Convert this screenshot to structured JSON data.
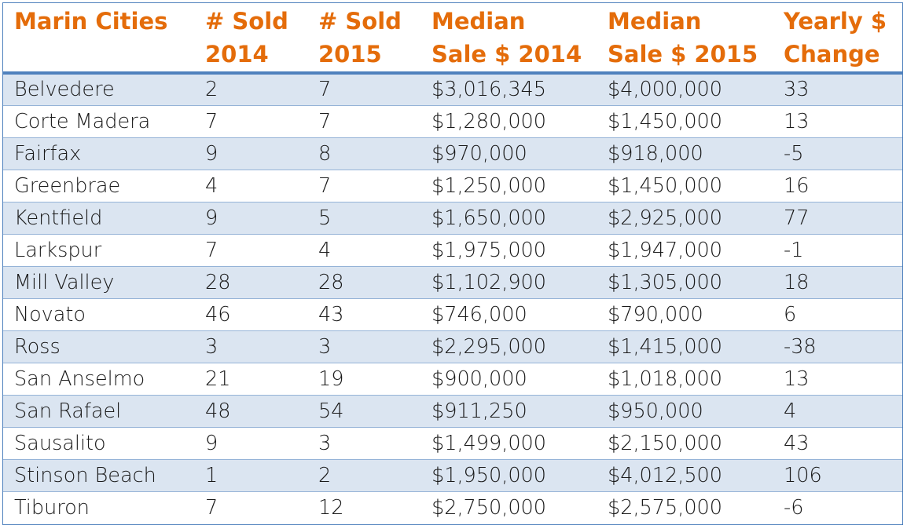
{
  "chart_data": {
    "type": "table",
    "columns": [
      "Marin Cities",
      "# Sold 2014",
      "# Sold 2015",
      "Median Sale $ 2014",
      "Median Sale $ 2015",
      "Yearly $ Change"
    ],
    "header_lines": [
      [
        "Marin Cities"
      ],
      [
        "# Sold",
        "2014"
      ],
      [
        "# Sold",
        "2015"
      ],
      [
        "Median",
        "Sale $ 2014"
      ],
      [
        "Median",
        "Sale $ 2015"
      ],
      [
        "Yearly $",
        "Change"
      ]
    ],
    "rows": [
      [
        "Belvedere",
        "2",
        "7",
        "$3,016,345",
        "$4,000,000",
        "33"
      ],
      [
        "Corte Madera",
        "7",
        "7",
        "$1,280,000",
        "$1,450,000",
        "13"
      ],
      [
        "Fairfax",
        "9",
        "8",
        "$970,000",
        "$918,000",
        "-5"
      ],
      [
        "Greenbrae",
        "4",
        "7",
        "$1,250,000",
        "$1,450,000",
        "16"
      ],
      [
        "Kentfield",
        "9",
        "5",
        "$1,650,000",
        "$2,925,000",
        "77"
      ],
      [
        "Larkspur",
        "7",
        "4",
        "$1,975,000",
        "$1,947,000",
        "-1"
      ],
      [
        "Mill Valley",
        "28",
        "28",
        "$1,102,900",
        "$1,305,000",
        "18"
      ],
      [
        "Novato",
        "46",
        "43",
        "$746,000",
        "$790,000",
        "6"
      ],
      [
        "Ross",
        "3",
        "3",
        "$2,295,000",
        "$1,415,000",
        "-38"
      ],
      [
        "San Anselmo",
        "21",
        "19",
        "$900,000",
        "$1,018,000",
        "13"
      ],
      [
        "San Rafael",
        "48",
        "54",
        "$911,250",
        "$950,000",
        "4"
      ],
      [
        "Sausalito",
        "9",
        "3",
        "$1,499,000",
        "$2,150,000",
        "43"
      ],
      [
        "Stinson Beach",
        "1",
        "2",
        "$1,950,000",
        "$4,012,500",
        "106"
      ],
      [
        "Tiburon",
        "7",
        "12",
        "$2,750,000",
        "$2,575,000",
        "-6"
      ]
    ]
  },
  "colors": {
    "header_text": "#e46c0a",
    "accent_border": "#4f81bd",
    "band_row": "#dbe5f1",
    "row_divider": "#95b3d7",
    "body_text": "#1a1a1a"
  }
}
